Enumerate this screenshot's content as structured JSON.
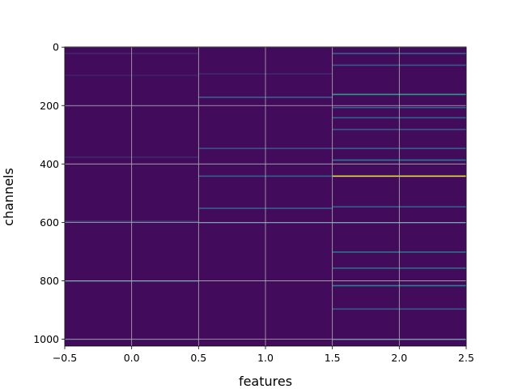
{
  "chart_data": {
    "type": "heatmap",
    "title": "",
    "xlabel": "features",
    "ylabel": "channels",
    "colormap": "viridis",
    "grid": true,
    "n_rows": 1024,
    "columns": [
      0,
      1,
      2
    ],
    "xlim": [
      -0.5,
      2.5
    ],
    "ylim": [
      1023.5,
      -0.5
    ],
    "x_ticks": [
      {
        "value": -0.5,
        "label": "−0.5"
      },
      {
        "value": 0.0,
        "label": "0.0"
      },
      {
        "value": 0.5,
        "label": "0.5"
      },
      {
        "value": 1.0,
        "label": "1.0"
      },
      {
        "value": 1.5,
        "label": "1.5"
      },
      {
        "value": 2.0,
        "label": "2.0"
      },
      {
        "value": 2.5,
        "label": "2.5"
      }
    ],
    "y_ticks": [
      {
        "value": 0,
        "label": "0"
      },
      {
        "value": 200,
        "label": "200"
      },
      {
        "value": 400,
        "label": "400"
      },
      {
        "value": 600,
        "label": "600"
      },
      {
        "value": 800,
        "label": "800"
      },
      {
        "value": 1000,
        "label": "1000"
      }
    ],
    "background_value": 0.03,
    "highlighted_cells": [
      {
        "column": 0,
        "row": 20,
        "value": 0.12
      },
      {
        "column": 0,
        "row": 95,
        "value": 0.1
      },
      {
        "column": 0,
        "row": 200,
        "value": 0.1
      },
      {
        "column": 0,
        "row": 375,
        "value": 0.12
      },
      {
        "column": 0,
        "row": 595,
        "value": 0.18
      },
      {
        "column": 0,
        "row": 800,
        "value": 0.22
      },
      {
        "column": 0,
        "row": 1000,
        "value": 0.12
      },
      {
        "column": 1,
        "row": 90,
        "value": 0.12
      },
      {
        "column": 1,
        "row": 170,
        "value": 0.3
      },
      {
        "column": 1,
        "row": 345,
        "value": 0.25
      },
      {
        "column": 1,
        "row": 440,
        "value": 0.3
      },
      {
        "column": 1,
        "row": 550,
        "value": 0.3
      },
      {
        "column": 1,
        "row": 600,
        "value": 0.22
      },
      {
        "column": 2,
        "row": 20,
        "value": 0.32
      },
      {
        "column": 2,
        "row": 60,
        "value": 0.28
      },
      {
        "column": 2,
        "row": 160,
        "value": 0.55
      },
      {
        "column": 2,
        "row": 205,
        "value": 0.3
      },
      {
        "column": 2,
        "row": 240,
        "value": 0.32
      },
      {
        "column": 2,
        "row": 280,
        "value": 0.28
      },
      {
        "column": 2,
        "row": 345,
        "value": 0.3
      },
      {
        "column": 2,
        "row": 385,
        "value": 0.4
      },
      {
        "column": 2,
        "row": 440,
        "value": 0.95
      },
      {
        "column": 2,
        "row": 545,
        "value": 0.3
      },
      {
        "column": 2,
        "row": 600,
        "value": 0.28
      },
      {
        "column": 2,
        "row": 700,
        "value": 0.38
      },
      {
        "column": 2,
        "row": 755,
        "value": 0.35
      },
      {
        "column": 2,
        "row": 815,
        "value": 0.45
      },
      {
        "column": 2,
        "row": 895,
        "value": 0.28
      },
      {
        "column": 2,
        "row": 1000,
        "value": 0.25
      }
    ]
  }
}
